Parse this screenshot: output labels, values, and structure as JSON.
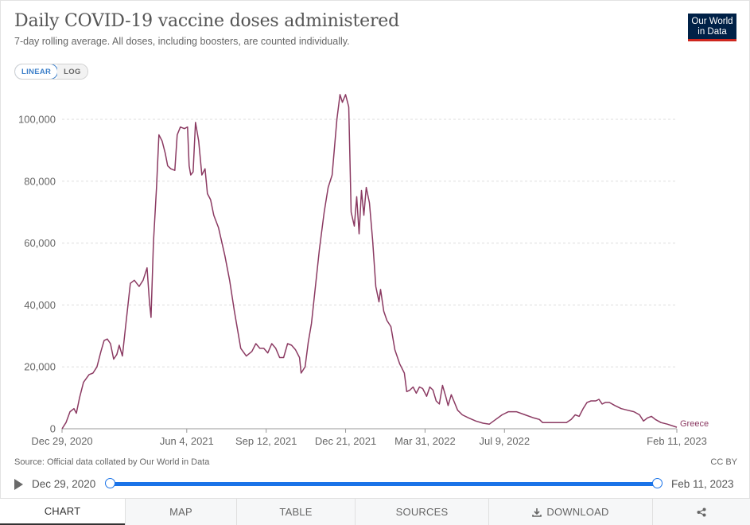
{
  "header": {
    "title": "Daily COVID-19 vaccine doses administered",
    "subtitle": "7-day rolling average. All doses, including boosters, are counted individually.",
    "logo_line1": "Our World",
    "logo_line2": "in Data"
  },
  "scale_toggle": {
    "linear": "LINEAR",
    "log": "LOG",
    "selected": "LINEAR"
  },
  "chart_data": {
    "type": "line",
    "title": "Daily COVID-19 vaccine doses administered",
    "subtitle": "7-day rolling average. All doses, including boosters, are counted individually.",
    "xlim": [
      "2020-12-29",
      "2023-02-11"
    ],
    "ylim": [
      0,
      100000
    ],
    "y_ticks": [
      0,
      20000,
      40000,
      60000,
      80000,
      100000
    ],
    "y_tick_labels": [
      "0",
      "20,000",
      "40,000",
      "60,000",
      "80,000",
      "100,000"
    ],
    "x_ticks": [
      "2020-12-29",
      "2021-06-04",
      "2021-09-12",
      "2021-12-21",
      "2022-03-31",
      "2022-07-09",
      "2023-02-11"
    ],
    "x_tick_labels": [
      "Dec 29, 2020",
      "Jun 4, 2021",
      "Sep 12, 2021",
      "Dec 21, 2021",
      "Mar 31, 2022",
      "Jul 9, 2022",
      "Feb 11, 2023"
    ],
    "grid": "horizontal-dashed",
    "series": [
      {
        "name": "Greece",
        "color": "#8b3a62",
        "points": [
          [
            "2020-12-29",
            0
          ],
          [
            "2021-01-03",
            2000
          ],
          [
            "2021-01-08",
            5500
          ],
          [
            "2021-01-13",
            6500
          ],
          [
            "2021-01-16",
            5000
          ],
          [
            "2021-01-20",
            10000
          ],
          [
            "2021-01-25",
            15000
          ],
          [
            "2021-02-01",
            17500
          ],
          [
            "2021-02-06",
            18000
          ],
          [
            "2021-02-11",
            20000
          ],
          [
            "2021-02-16",
            25000
          ],
          [
            "2021-02-20",
            28500
          ],
          [
            "2021-02-24",
            29000
          ],
          [
            "2021-02-28",
            27500
          ],
          [
            "2021-03-04",
            22500
          ],
          [
            "2021-03-08",
            24000
          ],
          [
            "2021-03-11",
            27000
          ],
          [
            "2021-03-15",
            23500
          ],
          [
            "2021-03-19",
            33000
          ],
          [
            "2021-03-22",
            40000
          ],
          [
            "2021-03-25",
            47000
          ],
          [
            "2021-03-30",
            48000
          ],
          [
            "2021-04-05",
            46000
          ],
          [
            "2021-04-10",
            48000
          ],
          [
            "2021-04-15",
            52000
          ],
          [
            "2021-04-18",
            41000
          ],
          [
            "2021-04-20",
            36000
          ],
          [
            "2021-04-23",
            60000
          ],
          [
            "2021-04-27",
            78000
          ],
          [
            "2021-04-30",
            95000
          ],
          [
            "2021-05-04",
            93000
          ],
          [
            "2021-05-08",
            89000
          ],
          [
            "2021-05-11",
            85000
          ],
          [
            "2021-05-15",
            84000
          ],
          [
            "2021-05-20",
            83500
          ],
          [
            "2021-05-23",
            95000
          ],
          [
            "2021-05-27",
            97500
          ],
          [
            "2021-06-01",
            97000
          ],
          [
            "2021-06-05",
            97500
          ],
          [
            "2021-06-07",
            85000
          ],
          [
            "2021-06-09",
            82000
          ],
          [
            "2021-06-12",
            83000
          ],
          [
            "2021-06-15",
            99000
          ],
          [
            "2021-06-19",
            93000
          ],
          [
            "2021-06-23",
            82000
          ],
          [
            "2021-06-27",
            84000
          ],
          [
            "2021-06-30",
            76000
          ],
          [
            "2021-07-04",
            74000
          ],
          [
            "2021-07-08",
            69000
          ],
          [
            "2021-07-14",
            65000
          ],
          [
            "2021-07-22",
            56000
          ],
          [
            "2021-07-28",
            48000
          ],
          [
            "2021-08-03",
            38000
          ],
          [
            "2021-08-11",
            26000
          ],
          [
            "2021-08-18",
            23500
          ],
          [
            "2021-08-25",
            25000
          ],
          [
            "2021-08-30",
            27500
          ],
          [
            "2021-09-04",
            26000
          ],
          [
            "2021-09-09",
            26000
          ],
          [
            "2021-09-14",
            24500
          ],
          [
            "2021-09-19",
            27500
          ],
          [
            "2021-09-24",
            26000
          ],
          [
            "2021-09-29",
            23000
          ],
          [
            "2021-10-04",
            23000
          ],
          [
            "2021-10-09",
            27500
          ],
          [
            "2021-10-14",
            27000
          ],
          [
            "2021-10-19",
            25500
          ],
          [
            "2021-10-24",
            23000
          ],
          [
            "2021-10-26",
            18000
          ],
          [
            "2021-10-31",
            20000
          ],
          [
            "2021-11-04",
            28000
          ],
          [
            "2021-11-08",
            34000
          ],
          [
            "2021-11-13",
            46000
          ],
          [
            "2021-11-18",
            58000
          ],
          [
            "2021-11-24",
            70000
          ],
          [
            "2021-11-29",
            78000
          ],
          [
            "2021-12-04",
            82000
          ],
          [
            "2021-12-10",
            100000
          ],
          [
            "2021-12-14",
            108000
          ],
          [
            "2021-12-17",
            105500
          ],
          [
            "2021-12-21",
            108000
          ],
          [
            "2021-12-25",
            104000
          ],
          [
            "2021-12-28",
            70000
          ],
          [
            "2022-01-01",
            65500
          ],
          [
            "2022-01-04",
            75000
          ],
          [
            "2022-01-07",
            63000
          ],
          [
            "2022-01-10",
            77000
          ],
          [
            "2022-01-13",
            69000
          ],
          [
            "2022-01-16",
            78000
          ],
          [
            "2022-01-20",
            73000
          ],
          [
            "2022-01-24",
            61000
          ],
          [
            "2022-01-28",
            46000
          ],
          [
            "2022-02-01",
            41000
          ],
          [
            "2022-02-03",
            45000
          ],
          [
            "2022-02-07",
            38000
          ],
          [
            "2022-02-11",
            35000
          ],
          [
            "2022-02-16",
            33000
          ],
          [
            "2022-02-21",
            25500
          ],
          [
            "2022-02-27",
            21000
          ],
          [
            "2022-03-05",
            18000
          ],
          [
            "2022-03-08",
            12000
          ],
          [
            "2022-03-12",
            12500
          ],
          [
            "2022-03-16",
            13500
          ],
          [
            "2022-03-20",
            11500
          ],
          [
            "2022-03-24",
            13500
          ],
          [
            "2022-03-28",
            13000
          ],
          [
            "2022-04-02",
            10500
          ],
          [
            "2022-04-06",
            13500
          ],
          [
            "2022-04-10",
            12500
          ],
          [
            "2022-04-14",
            9000
          ],
          [
            "2022-04-18",
            8000
          ],
          [
            "2022-04-22",
            14000
          ],
          [
            "2022-04-26",
            10500
          ],
          [
            "2022-04-29",
            7500
          ],
          [
            "2022-05-03",
            11000
          ],
          [
            "2022-05-07",
            8500
          ],
          [
            "2022-05-11",
            6000
          ],
          [
            "2022-05-17",
            4500
          ],
          [
            "2022-05-25",
            3500
          ],
          [
            "2022-06-03",
            2500
          ],
          [
            "2022-06-12",
            1800
          ],
          [
            "2022-06-20",
            1500
          ],
          [
            "2022-06-28",
            3000
          ],
          [
            "2022-07-06",
            4500
          ],
          [
            "2022-07-14",
            5500
          ],
          [
            "2022-07-24",
            5500
          ],
          [
            "2022-08-04",
            4500
          ],
          [
            "2022-08-15",
            3500
          ],
          [
            "2022-08-22",
            3000
          ],
          [
            "2022-08-26",
            2000
          ],
          [
            "2022-09-04",
            2000
          ],
          [
            "2022-09-15",
            2000
          ],
          [
            "2022-09-25",
            2000
          ],
          [
            "2022-10-01",
            3000
          ],
          [
            "2022-10-06",
            4500
          ],
          [
            "2022-10-11",
            4000
          ],
          [
            "2022-10-16",
            6500
          ],
          [
            "2022-10-21",
            8500
          ],
          [
            "2022-10-26",
            9000
          ],
          [
            "2022-11-01",
            9000
          ],
          [
            "2022-11-05",
            9500
          ],
          [
            "2022-11-09",
            8000
          ],
          [
            "2022-11-13",
            8500
          ],
          [
            "2022-11-18",
            8500
          ],
          [
            "2022-11-25",
            7500
          ],
          [
            "2022-12-03",
            6500
          ],
          [
            "2022-12-11",
            6000
          ],
          [
            "2022-12-19",
            5500
          ],
          [
            "2022-12-26",
            4500
          ],
          [
            "2022-12-31",
            2500
          ],
          [
            "2023-01-05",
            3500
          ],
          [
            "2023-01-10",
            4000
          ],
          [
            "2023-01-15",
            3000
          ],
          [
            "2023-01-22",
            2000
          ],
          [
            "2023-01-30",
            1500
          ],
          [
            "2023-02-11",
            500
          ]
        ]
      }
    ]
  },
  "footer": {
    "source": "Source: Official data collated by Our World in Data",
    "license": "CC BY"
  },
  "timeline": {
    "start": "Dec 29, 2020",
    "end": "Feb 11, 2023"
  },
  "tabs": {
    "chart": "CHART",
    "map": "MAP",
    "table": "TABLE",
    "sources": "SOURCES",
    "download": "DOWNLOAD",
    "share_icon": "share-icon",
    "download_icon": "download-icon"
  }
}
